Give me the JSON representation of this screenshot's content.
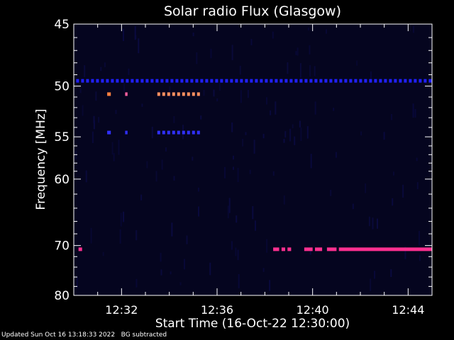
{
  "chart_data": {
    "type": "heatmap",
    "title": "Solar radio Flux (Glasgow)",
    "xlabel": "Start Time (16-Oct-22 12:30:00)",
    "ylabel": "Frequency [MHz]",
    "x_tick_labels": [
      "12:32",
      "12:36",
      "12:40",
      "12:44"
    ],
    "x_tick_minutes": [
      2,
      6,
      10,
      14
    ],
    "x_range_minutes": [
      0,
      15
    ],
    "y_tick_labels": [
      "45",
      "50",
      "55",
      "60",
      "70",
      "80"
    ],
    "y_tick_values": [
      45,
      50,
      55,
      60,
      70,
      80
    ],
    "y_scale": "reciprocal",
    "y_range": [
      45,
      80
    ],
    "background_color": "#000000",
    "plot_color": "#05051f",
    "emission_bands": [
      {
        "freq": 49.5,
        "start_min": 0.1,
        "end_min": 15.0,
        "pattern": "dashed",
        "color": "#2020ff"
      },
      {
        "freq": 50.7,
        "start_min": 1.4,
        "end_min": 1.55,
        "pattern": "solid",
        "color": "#ff8040"
      },
      {
        "freq": 50.7,
        "start_min": 2.15,
        "end_min": 2.25,
        "pattern": "solid",
        "color": "#ff60a0"
      },
      {
        "freq": 50.7,
        "start_min": 3.5,
        "end_min": 5.2,
        "pattern": "dashed",
        "color": "#ff9060"
      },
      {
        "freq": 54.5,
        "start_min": 1.4,
        "end_min": 1.55,
        "pattern": "solid",
        "color": "#3030ff"
      },
      {
        "freq": 54.5,
        "start_min": 2.15,
        "end_min": 2.25,
        "pattern": "solid",
        "color": "#3030ff"
      },
      {
        "freq": 54.5,
        "start_min": 3.5,
        "end_min": 5.2,
        "pattern": "dashed",
        "color": "#3030ff"
      },
      {
        "freq": 70.6,
        "start_min": 0.2,
        "end_min": 0.35,
        "pattern": "solid",
        "color": "#ff3090"
      },
      {
        "freq": 70.6,
        "start_min": 8.35,
        "end_min": 8.6,
        "pattern": "solid",
        "color": "#ff3090"
      },
      {
        "freq": 70.6,
        "start_min": 8.7,
        "end_min": 8.85,
        "pattern": "solid",
        "color": "#ff3090"
      },
      {
        "freq": 70.6,
        "start_min": 8.95,
        "end_min": 9.1,
        "pattern": "solid",
        "color": "#ff3090"
      },
      {
        "freq": 70.6,
        "start_min": 9.65,
        "end_min": 10.0,
        "pattern": "solid",
        "color": "#ff3090"
      },
      {
        "freq": 70.6,
        "start_min": 10.1,
        "end_min": 10.4,
        "pattern": "solid",
        "color": "#ff3090"
      },
      {
        "freq": 70.6,
        "start_min": 10.6,
        "end_min": 11.0,
        "pattern": "solid",
        "color": "#ff3090"
      },
      {
        "freq": 70.6,
        "start_min": 11.1,
        "end_min": 15.0,
        "pattern": "solid",
        "color": "#ff3090"
      }
    ]
  },
  "footer": {
    "updated": "Updated Sun Oct 16 13:18:33 2022",
    "bg_note": "BG subtracted"
  }
}
